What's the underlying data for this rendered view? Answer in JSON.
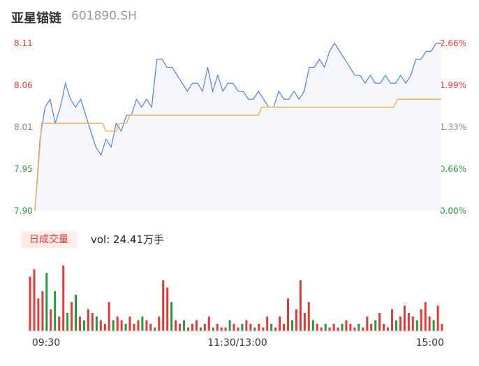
{
  "header": {
    "name": "亚星锚链",
    "code": "601890.SH"
  },
  "volume": {
    "tab_label": "日成交量",
    "summary": "vol: 24.41万手"
  },
  "colors": {
    "up": "#e53935",
    "down": "#1e9e3a",
    "price_line": "#4d80e6",
    "avg_line": "#f5b041",
    "neutral": "#888888"
  },
  "chart_data": {
    "type": "line",
    "price_axis": {
      "ticks": [
        {
          "label": "8.11",
          "value": 8.11,
          "color": "#e53935"
        },
        {
          "label": "8.06",
          "value": 8.06,
          "color": "#e53935"
        },
        {
          "label": "8.01",
          "value": 8.01,
          "color": "#888888"
        },
        {
          "label": "7.95",
          "value": 7.95,
          "color": "#1e9e3a"
        },
        {
          "label": "7.90",
          "value": 7.9,
          "color": "#1e9e3a"
        }
      ],
      "ylim": [
        7.9,
        8.11
      ]
    },
    "pct_axis": {
      "ticks": [
        {
          "label": "2.66%",
          "color": "#e53935"
        },
        {
          "label": "1.99%",
          "color": "#e53935"
        },
        {
          "label": "1.33%",
          "color": "#888888"
        },
        {
          "label": "0.66%",
          "color": "#1e9e3a"
        },
        {
          "label": "0.00%",
          "color": "#1e9e3a"
        }
      ]
    },
    "x_ticks": [
      "09:30",
      "11:30/13:00",
      "15:00"
    ],
    "price_series": [
      [
        0,
        7.9
      ],
      [
        3,
        7.99
      ],
      [
        6,
        8.03
      ],
      [
        9,
        8.04
      ],
      [
        12,
        8.01
      ],
      [
        15,
        8.03
      ],
      [
        18,
        8.06
      ],
      [
        21,
        8.04
      ],
      [
        24,
        8.03
      ],
      [
        27,
        8.04
      ],
      [
        30,
        8.02
      ],
      [
        33,
        8.0
      ],
      [
        36,
        7.98
      ],
      [
        39,
        7.97
      ],
      [
        42,
        7.99
      ],
      [
        45,
        7.98
      ],
      [
        48,
        8.01
      ],
      [
        51,
        8.0
      ],
      [
        54,
        8.02
      ],
      [
        57,
        8.02
      ],
      [
        60,
        8.04
      ],
      [
        63,
        8.03
      ],
      [
        66,
        8.04
      ],
      [
        69,
        8.03
      ],
      [
        72,
        8.09
      ],
      [
        75,
        8.09
      ],
      [
        78,
        8.08
      ],
      [
        81,
        8.08
      ],
      [
        84,
        8.07
      ],
      [
        87,
        8.06
      ],
      [
        90,
        8.05
      ],
      [
        93,
        8.06
      ],
      [
        96,
        8.06
      ],
      [
        99,
        8.05
      ],
      [
        102,
        8.08
      ],
      [
        105,
        8.05
      ],
      [
        108,
        8.07
      ],
      [
        111,
        8.05
      ],
      [
        114,
        8.06
      ],
      [
        117,
        8.06
      ],
      [
        120,
        8.05
      ],
      [
        123,
        8.05
      ],
      [
        126,
        8.04
      ],
      [
        129,
        8.04
      ],
      [
        132,
        8.05
      ],
      [
        135,
        8.04
      ],
      [
        138,
        8.03
      ],
      [
        141,
        8.03
      ],
      [
        144,
        8.05
      ],
      [
        147,
        8.04
      ],
      [
        150,
        8.04
      ],
      [
        153,
        8.05
      ],
      [
        156,
        8.04
      ],
      [
        159,
        8.05
      ],
      [
        162,
        8.08
      ],
      [
        165,
        8.08
      ],
      [
        168,
        8.09
      ],
      [
        171,
        8.08
      ],
      [
        174,
        8.1
      ],
      [
        177,
        8.11
      ],
      [
        180,
        8.1
      ],
      [
        183,
        8.09
      ],
      [
        186,
        8.08
      ],
      [
        189,
        8.07
      ],
      [
        192,
        8.07
      ],
      [
        195,
        8.06
      ],
      [
        198,
        8.07
      ],
      [
        201,
        8.06
      ],
      [
        204,
        8.06
      ],
      [
        207,
        8.07
      ],
      [
        210,
        8.06
      ],
      [
        213,
        8.06
      ],
      [
        216,
        8.07
      ],
      [
        219,
        8.06
      ],
      [
        222,
        8.07
      ],
      [
        225,
        8.09
      ],
      [
        228,
        8.09
      ],
      [
        231,
        8.1
      ],
      [
        234,
        8.1
      ],
      [
        237,
        8.11
      ],
      [
        240,
        8.11
      ]
    ],
    "avg_series": [
      [
        0,
        7.9
      ],
      [
        4,
        8.01
      ],
      [
        30,
        8.01
      ],
      [
        36,
        8.01
      ],
      [
        40,
        8.01
      ],
      [
        42,
        8.0
      ],
      [
        48,
        8.0
      ],
      [
        50,
        8.01
      ],
      [
        54,
        8.01
      ],
      [
        56,
        8.02
      ],
      [
        90,
        8.02
      ],
      [
        120,
        8.02
      ],
      [
        132,
        8.02
      ],
      [
        134,
        8.03
      ],
      [
        200,
        8.03
      ],
      [
        212,
        8.03
      ],
      [
        214,
        8.04
      ],
      [
        240,
        8.04
      ]
    ],
    "volume_bars": [
      [
        75,
        "up"
      ],
      [
        85,
        "up"
      ],
      [
        45,
        "up"
      ],
      [
        55,
        "up"
      ],
      [
        80,
        "down"
      ],
      [
        30,
        "up"
      ],
      [
        55,
        "down"
      ],
      [
        20,
        "up"
      ],
      [
        90,
        "up"
      ],
      [
        25,
        "down"
      ],
      [
        40,
        "up"
      ],
      [
        50,
        "down"
      ],
      [
        20,
        "up"
      ],
      [
        15,
        "down"
      ],
      [
        30,
        "up"
      ],
      [
        25,
        "up"
      ],
      [
        20,
        "down"
      ],
      [
        15,
        "up"
      ],
      [
        10,
        "up"
      ],
      [
        40,
        "up"
      ],
      [
        15,
        "down"
      ],
      [
        20,
        "up"
      ],
      [
        15,
        "up"
      ],
      [
        10,
        "down"
      ],
      [
        20,
        "up"
      ],
      [
        10,
        "up"
      ],
      [
        15,
        "up"
      ],
      [
        20,
        "down"
      ],
      [
        15,
        "up"
      ],
      [
        10,
        "up"
      ],
      [
        5,
        "down"
      ],
      [
        20,
        "up"
      ],
      [
        70,
        "up"
      ],
      [
        60,
        "up"
      ],
      [
        40,
        "down"
      ],
      [
        15,
        "up"
      ],
      [
        10,
        "up"
      ],
      [
        15,
        "down"
      ],
      [
        5,
        "up"
      ],
      [
        10,
        "up"
      ],
      [
        15,
        "up"
      ],
      [
        5,
        "down"
      ],
      [
        10,
        "up"
      ],
      [
        20,
        "up"
      ],
      [
        5,
        "down"
      ],
      [
        10,
        "up"
      ],
      [
        5,
        "up"
      ],
      [
        5,
        "up"
      ],
      [
        15,
        "down"
      ],
      [
        10,
        "up"
      ],
      [
        5,
        "up"
      ],
      [
        10,
        "down"
      ],
      [
        15,
        "up"
      ],
      [
        10,
        "up"
      ],
      [
        5,
        "down"
      ],
      [
        10,
        "up"
      ],
      [
        5,
        "up"
      ],
      [
        20,
        "up"
      ],
      [
        10,
        "down"
      ],
      [
        5,
        "up"
      ],
      [
        20,
        "up"
      ],
      [
        10,
        "up"
      ],
      [
        45,
        "up"
      ],
      [
        15,
        "down"
      ],
      [
        30,
        "up"
      ],
      [
        70,
        "up"
      ],
      [
        25,
        "up"
      ],
      [
        40,
        "up"
      ],
      [
        15,
        "down"
      ],
      [
        10,
        "up"
      ],
      [
        5,
        "up"
      ],
      [
        10,
        "down"
      ],
      [
        5,
        "up"
      ],
      [
        10,
        "up"
      ],
      [
        5,
        "up"
      ],
      [
        10,
        "down"
      ],
      [
        15,
        "up"
      ],
      [
        10,
        "up"
      ],
      [
        5,
        "up"
      ],
      [
        10,
        "down"
      ],
      [
        5,
        "up"
      ],
      [
        20,
        "up"
      ],
      [
        10,
        "up"
      ],
      [
        15,
        "down"
      ],
      [
        25,
        "up"
      ],
      [
        10,
        "up"
      ],
      [
        5,
        "up"
      ],
      [
        30,
        "up"
      ],
      [
        15,
        "down"
      ],
      [
        20,
        "up"
      ],
      [
        35,
        "up"
      ],
      [
        25,
        "up"
      ],
      [
        20,
        "up"
      ],
      [
        15,
        "down"
      ],
      [
        30,
        "up"
      ],
      [
        40,
        "up"
      ],
      [
        20,
        "up"
      ],
      [
        15,
        "down"
      ],
      [
        35,
        "up"
      ],
      [
        10,
        "up"
      ]
    ]
  }
}
